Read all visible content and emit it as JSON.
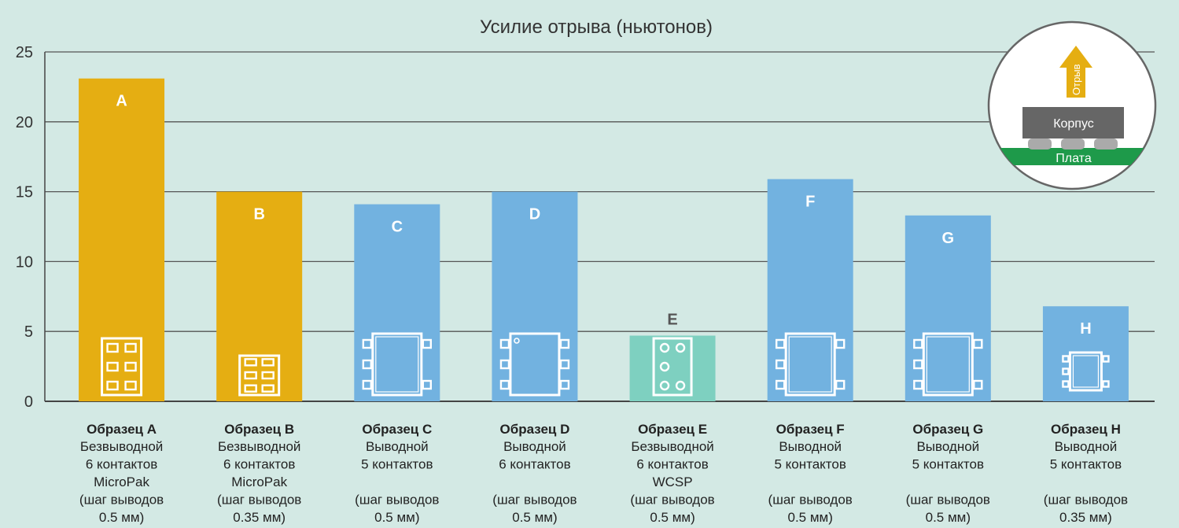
{
  "chart_data": {
    "type": "bar",
    "title": "Усилие отрыва (ньютонов)",
    "ylim": [
      0,
      25
    ],
    "yticks": [
      "0",
      "5",
      "10",
      "15",
      "20",
      "25"
    ],
    "grid": true,
    "categories": [
      "A",
      "B",
      "C",
      "D",
      "E",
      "F",
      "G",
      "H"
    ],
    "values": [
      23.1,
      15.0,
      14.1,
      15.0,
      4.7,
      15.9,
      13.3,
      6.8
    ],
    "bar_colors": [
      "#e5ae12",
      "#e5ae12",
      "#72b2e0",
      "#72b2e0",
      "#7ed0c0",
      "#72b2e0",
      "#72b2e0",
      "#72b2e0"
    ],
    "bar_label_above": [
      false,
      false,
      false,
      false,
      true,
      false,
      false,
      false
    ],
    "package_icons": [
      "micropak-6",
      "micropak-6-small",
      "leaded-5",
      "leaded-6",
      "wcsp-6",
      "leaded-5",
      "leaded-5",
      "leaded-5-small"
    ],
    "captions": [
      {
        "name": "Образец A",
        "lines": [
          "Безвыводной",
          "6 контактов",
          "MicroPak",
          "(шаг выводов",
          "0.5 мм)"
        ]
      },
      {
        "name": "Образец B",
        "lines": [
          "Безвыводной",
          "6 контактов",
          "MicroPak",
          "(шаг выводов",
          "0.35 мм)"
        ]
      },
      {
        "name": "Образец C",
        "lines": [
          "Выводной",
          "5 контактов",
          "",
          "(шаг выводов",
          "0.5 мм)"
        ]
      },
      {
        "name": "Образец D",
        "lines": [
          "Выводной",
          "6 контактов",
          "",
          "(шаг выводов",
          "0.5 мм)"
        ]
      },
      {
        "name": "Образец E",
        "lines": [
          "Безвыводной",
          "6 контактов",
          "WCSP",
          "(шаг выводов",
          "0.5 мм)"
        ]
      },
      {
        "name": "Образец F",
        "lines": [
          "Выводной",
          "5 контактов",
          "",
          "(шаг выводов",
          "0.5 мм)"
        ]
      },
      {
        "name": "Образец G",
        "lines": [
          "Выводной",
          "5 контактов",
          "",
          "(шаг выводов",
          "0.5 мм)"
        ]
      },
      {
        "name": "Образец H",
        "lines": [
          "Выводной",
          "5 контактов",
          "",
          "(шаг выводов",
          "0.35 мм)"
        ]
      }
    ]
  },
  "inset": {
    "arrow_label": "Отрыв",
    "package_label": "Корпус",
    "board_label": "Плата",
    "colors": {
      "arrow": "#e5ae12",
      "package": "#666666",
      "board": "#1e9a4a",
      "bumps": "#aaaaaa"
    }
  },
  "colors": {
    "background": "#d3e9e4",
    "grid": "#555555",
    "axis": "#444444"
  }
}
